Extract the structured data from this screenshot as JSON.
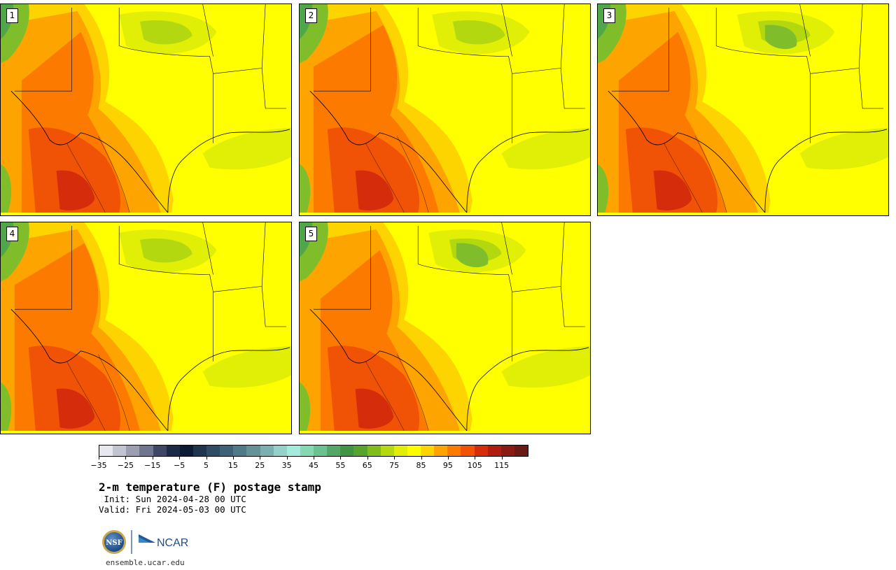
{
  "panels": [
    {
      "label": "1",
      "variant": 0
    },
    {
      "label": "2",
      "variant": 1
    },
    {
      "label": "3",
      "variant": 2
    },
    {
      "label": "4",
      "variant": 3
    },
    {
      "label": "5",
      "variant": 4
    }
  ],
  "colorbar": {
    "colors": [
      "#e6e8ee",
      "#c2c4d2",
      "#9c9fb2",
      "#707590",
      "#3f4766",
      "#1d2a47",
      "#0d1a33",
      "#1e3550",
      "#2e4c66",
      "#3d6278",
      "#4f7a88",
      "#649397",
      "#7cb0b0",
      "#95d0ca",
      "#a3ebdd",
      "#86d8b2",
      "#6ac290",
      "#53a865",
      "#3f9342",
      "#56a32e",
      "#80bd1a",
      "#b5d80f",
      "#e3ee06",
      "#fdfd00",
      "#fed400",
      "#fea400",
      "#fd7a00",
      "#f35206",
      "#d52d0b",
      "#b01d10",
      "#8a1a14",
      "#6a1a14"
    ],
    "tick_labels": [
      "−35",
      "−25",
      "−15",
      "−5",
      "5",
      "15",
      "25",
      "35",
      "45",
      "55",
      "65",
      "75",
      "85",
      "95",
      "105",
      "115"
    ]
  },
  "title": "2-m temperature (F) postage stamp",
  "init": " Init: Sun 2024-04-28 00 UTC",
  "valid": "Valid: Fri 2024-05-03 00 UTC",
  "logos": [
    "NSF",
    "NCAR"
  ],
  "url": "ensemble.ucar.edu"
}
